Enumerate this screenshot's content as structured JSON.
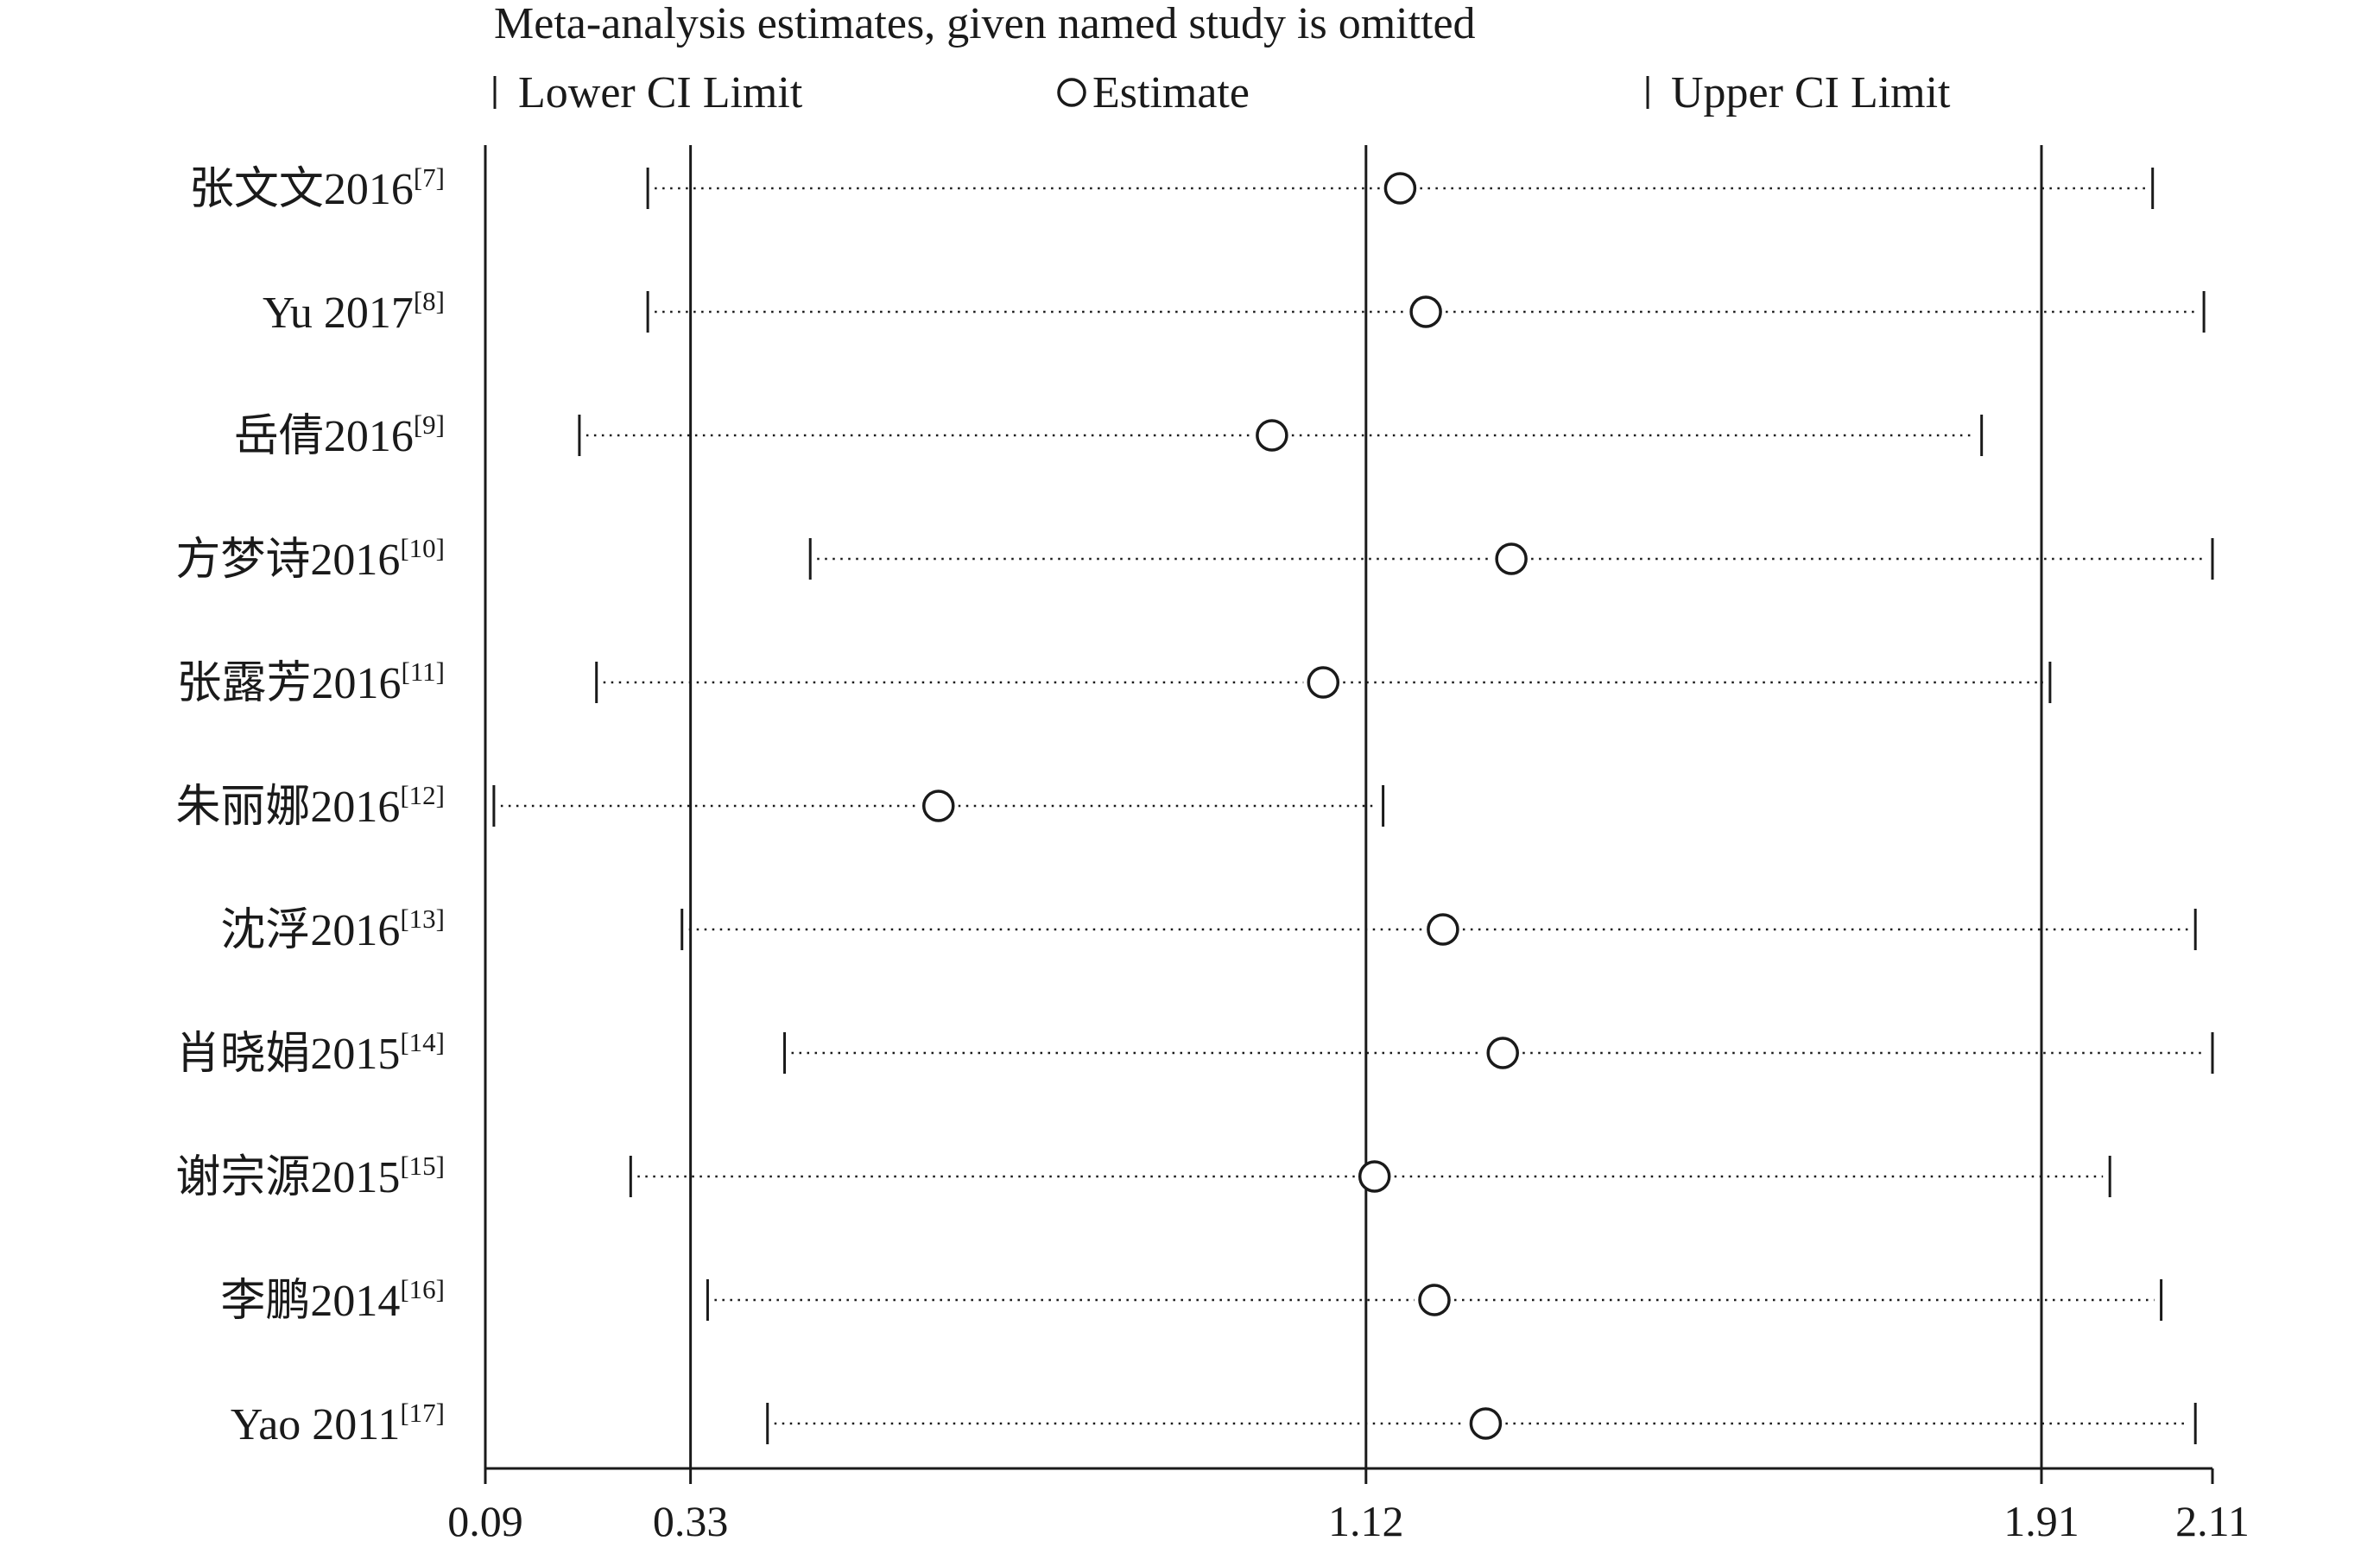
{
  "chart_data": {
    "type": "forest",
    "title": "Meta-analysis estimates, given named study is omitted",
    "legend": {
      "lower": "Lower CI Limit",
      "estimate": "Estimate",
      "upper": "Upper CI Limit",
      "placement": "top"
    },
    "studies": [
      {
        "name": "张文文2016",
        "ref": "[7]",
        "lower": 0.28,
        "estimate": 1.16,
        "upper": 2.04
      },
      {
        "name": "Yu 2017",
        "ref": "[8]",
        "lower": 0.28,
        "estimate": 1.19,
        "upper": 2.1
      },
      {
        "name": "岳倩2016",
        "ref": "[9]",
        "lower": 0.2,
        "estimate": 1.01,
        "upper": 1.84
      },
      {
        "name": "方梦诗2016",
        "ref": "[10]",
        "lower": 0.47,
        "estimate": 1.29,
        "upper": 2.11
      },
      {
        "name": "张露芳2016",
        "ref": "[11]",
        "lower": 0.22,
        "estimate": 1.07,
        "upper": 1.92
      },
      {
        "name": "朱丽娜2016",
        "ref": "[12]",
        "lower": 0.1,
        "estimate": 0.62,
        "upper": 1.14
      },
      {
        "name": "沈浮2016",
        "ref": "[13]",
        "lower": 0.32,
        "estimate": 1.21,
        "upper": 2.09
      },
      {
        "name": "肖晓娟2015",
        "ref": "[14]",
        "lower": 0.44,
        "estimate": 1.28,
        "upper": 2.11
      },
      {
        "name": "谢宗源2015",
        "ref": "[15]",
        "lower": 0.26,
        "estimate": 1.13,
        "upper": 1.99
      },
      {
        "name": "李鹏2014",
        "ref": "[16]",
        "lower": 0.35,
        "estimate": 1.2,
        "upper": 2.05
      },
      {
        "name": "Yao 2011",
        "ref": "[17]",
        "lower": 0.42,
        "estimate": 1.26,
        "upper": 2.09
      }
    ],
    "x_ticks": [
      0.09,
      0.33,
      1.12,
      1.91,
      2.11
    ],
    "x_tick_labels": [
      "0.09",
      "0.33",
      "1.12",
      "1.91",
      "2.11"
    ],
    "reference_lines": [
      0.09,
      0.33,
      1.12,
      1.91
    ],
    "xlim": [
      0.09,
      2.11
    ],
    "grid": false
  }
}
